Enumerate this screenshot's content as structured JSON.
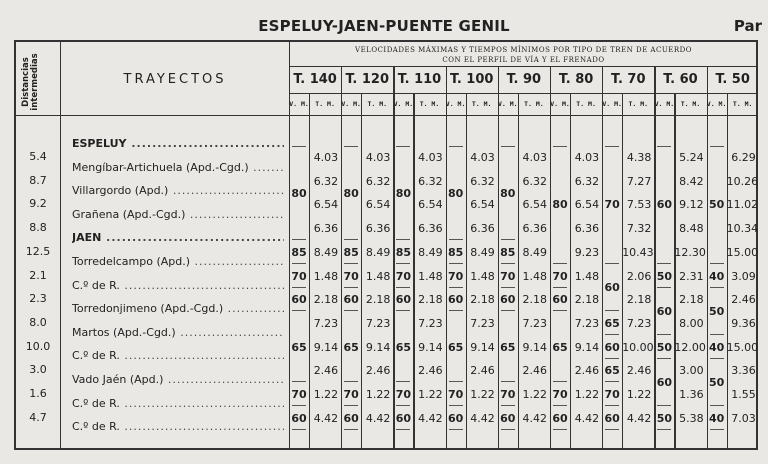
{
  "title": "ESPELUY-JAEN-PUENTE GENIL",
  "page_label": "Par",
  "headers": {
    "distances": "Distancias intermedias",
    "trayectos": "TRAYECTOS",
    "velocidades_line1": "VELOCIDADES MÁXIMAS Y TIEMPOS MÍNIMOS POR TIPO DE TREN DE ACUERDO",
    "velocidades_line2": "CON EL PERFIL DE VÍA Y EL FRENADO",
    "vm": "V. M.",
    "tm": "T. M."
  },
  "stations": [
    {
      "name": "ESPELUY",
      "bold": true
    },
    {
      "name": "Mengíbar-Artichuela (Apd.-Cgd.)",
      "bold": false
    },
    {
      "name": "Villargordo (Apd.)",
      "bold": false
    },
    {
      "name": "Grañena (Apd.-Cgd.)",
      "bold": false
    },
    {
      "name": "JAEN",
      "bold": true
    },
    {
      "name": "Torredelcampo (Apd.)",
      "bold": false
    },
    {
      "name": "C.º de R.",
      "bold": false
    },
    {
      "name": "Torredonjimeno (Apd.-Cgd.)",
      "bold": false
    },
    {
      "name": "Martos (Apd.-Cgd.)",
      "bold": false
    },
    {
      "name": "C.º de R.",
      "bold": false
    },
    {
      "name": "Vado Jaén (Apd.)",
      "bold": false
    },
    {
      "name": "C.º de R.",
      "bold": false
    },
    {
      "name": "C.º de R.",
      "bold": false
    }
  ],
  "distances": [
    "5.4",
    "8.7",
    "9.2",
    "8.8",
    "12.5",
    "2.1",
    "2.3",
    "8.0",
    "10.0",
    "3.0",
    "1.6",
    "4.7"
  ],
  "train_types": [
    {
      "label": "T. 140",
      "vm": [
        {
          "v": "80",
          "from": 0,
          "to": 3
        },
        {
          "v": "85",
          "from": 4,
          "to": 4
        },
        {
          "v": "70",
          "from": 5,
          "to": 5
        },
        {
          "v": "60",
          "from": 6,
          "to": 6
        },
        {
          "v": "65",
          "from": 7,
          "to": 9
        },
        {
          "v": "70",
          "from": 10,
          "to": 10
        },
        {
          "v": "60",
          "from": 11,
          "to": 11
        }
      ],
      "tm": [
        "4.03",
        "6.32",
        "6.54",
        "6.36",
        "8.49",
        "1.48",
        "2.18",
        "7.23",
        "9.14",
        "2.46",
        "1.22",
        "4.42"
      ]
    },
    {
      "label": "T. 120",
      "vm": [
        {
          "v": "80",
          "from": 0,
          "to": 3
        },
        {
          "v": "85",
          "from": 4,
          "to": 4
        },
        {
          "v": "70",
          "from": 5,
          "to": 5
        },
        {
          "v": "60",
          "from": 6,
          "to": 6
        },
        {
          "v": "65",
          "from": 7,
          "to": 9
        },
        {
          "v": "70",
          "from": 10,
          "to": 10
        },
        {
          "v": "60",
          "from": 11,
          "to": 11
        }
      ],
      "tm": [
        "4.03",
        "6.32",
        "6.54",
        "6.36",
        "8.49",
        "1.48",
        "2.18",
        "7.23",
        "9.14",
        "2.46",
        "1.22",
        "4.42"
      ]
    },
    {
      "label": "T. 110",
      "vm": [
        {
          "v": "80",
          "from": 0,
          "to": 3
        },
        {
          "v": "85",
          "from": 4,
          "to": 4
        },
        {
          "v": "70",
          "from": 5,
          "to": 5
        },
        {
          "v": "60",
          "from": 6,
          "to": 6
        },
        {
          "v": "65",
          "from": 7,
          "to": 9
        },
        {
          "v": "70",
          "from": 10,
          "to": 10
        },
        {
          "v": "60",
          "from": 11,
          "to": 11
        }
      ],
      "tm": [
        "4.03",
        "6.32",
        "6.54",
        "6.36",
        "8.49",
        "1.48",
        "2.18",
        "7.23",
        "9.14",
        "2.46",
        "1.22",
        "4.42"
      ]
    },
    {
      "label": "T. 100",
      "vm": [
        {
          "v": "80",
          "from": 0,
          "to": 3
        },
        {
          "v": "85",
          "from": 4,
          "to": 4
        },
        {
          "v": "70",
          "from": 5,
          "to": 5
        },
        {
          "v": "60",
          "from": 6,
          "to": 6
        },
        {
          "v": "65",
          "from": 7,
          "to": 9
        },
        {
          "v": "70",
          "from": 10,
          "to": 10
        },
        {
          "v": "60",
          "from": 11,
          "to": 11
        }
      ],
      "tm": [
        "4.03",
        "6.32",
        "6.54",
        "6.36",
        "8.49",
        "1.48",
        "2.18",
        "7.23",
        "9.14",
        "2.46",
        "1.22",
        "4.42"
      ]
    },
    {
      "label": "T. 90",
      "vm": [
        {
          "v": "80",
          "from": 0,
          "to": 3
        },
        {
          "v": "85",
          "from": 4,
          "to": 4
        },
        {
          "v": "70",
          "from": 5,
          "to": 5
        },
        {
          "v": "60",
          "from": 6,
          "to": 6
        },
        {
          "v": "65",
          "from": 7,
          "to": 9
        },
        {
          "v": "70",
          "from": 10,
          "to": 10
        },
        {
          "v": "60",
          "from": 11,
          "to": 11
        }
      ],
      "tm": [
        "4.03",
        "6.32",
        "6.54",
        "6.36",
        "8.49",
        "1.48",
        "2.18",
        "7.23",
        "9.14",
        "2.46",
        "1.22",
        "4.42"
      ]
    },
    {
      "label": "T. 80",
      "vm": [
        {
          "v": "80",
          "from": 0,
          "to": 4
        },
        {
          "v": "70",
          "from": 5,
          "to": 5
        },
        {
          "v": "60",
          "from": 6,
          "to": 6
        },
        {
          "v": "65",
          "from": 7,
          "to": 9
        },
        {
          "v": "70",
          "from": 10,
          "to": 10
        },
        {
          "v": "60",
          "from": 11,
          "to": 11
        }
      ],
      "tm": [
        "4.03",
        "6.32",
        "6.54",
        "6.36",
        "9.23",
        "1.48",
        "2.18",
        "7.23",
        "9.14",
        "2.46",
        "1.22",
        "4.42"
      ]
    },
    {
      "label": "T. 70",
      "vm": [
        {
          "v": "70",
          "from": 0,
          "to": 4
        },
        {
          "v": "60",
          "from": 5,
          "to": 6
        },
        {
          "v": "65",
          "from": 7,
          "to": 7
        },
        {
          "v": "60",
          "from": 8,
          "to": 8
        },
        {
          "v": "65",
          "from": 9,
          "to": 9
        },
        {
          "v": "70",
          "from": 10,
          "to": 10
        },
        {
          "v": "60",
          "from": 11,
          "to": 11
        }
      ],
      "tm": [
        "4.38",
        "7.27",
        "7.53",
        "7.32",
        "10.43",
        "2.06",
        "2.18",
        "7.23",
        "10.00",
        "2.46",
        "1.22",
        "4.42"
      ]
    },
    {
      "label": "T. 60",
      "vm": [
        {
          "v": "60",
          "from": 0,
          "to": 4
        },
        {
          "v": "50",
          "from": 5,
          "to": 5
        },
        {
          "v": "60",
          "from": 6,
          "to": 7
        },
        {
          "v": "50",
          "from": 8,
          "to": 8
        },
        {
          "v": "60",
          "from": 9,
          "to": 10
        },
        {
          "v": "50",
          "from": 11,
          "to": 11
        }
      ],
      "tm": [
        "5.24",
        "8.42",
        "9.12",
        "8.48",
        "12.30",
        "2.31",
        "2.18",
        "8.00",
        "12.00",
        "3.00",
        "1.36",
        "5.38"
      ]
    },
    {
      "label": "T. 50",
      "vm": [
        {
          "v": "50",
          "from": 0,
          "to": 4
        },
        {
          "v": "40",
          "from": 5,
          "to": 5
        },
        {
          "v": "50",
          "from": 6,
          "to": 7
        },
        {
          "v": "40",
          "from": 8,
          "to": 8
        },
        {
          "v": "50",
          "from": 9,
          "to": 10
        },
        {
          "v": "40",
          "from": 11,
          "to": 11
        }
      ],
      "tm": [
        "6.29",
        "10.26",
        "11.02",
        "10.34",
        "15.00",
        "3.09",
        "2.46",
        "9.36",
        "15.00",
        "3.36",
        "1.55",
        "7.03"
      ]
    }
  ]
}
